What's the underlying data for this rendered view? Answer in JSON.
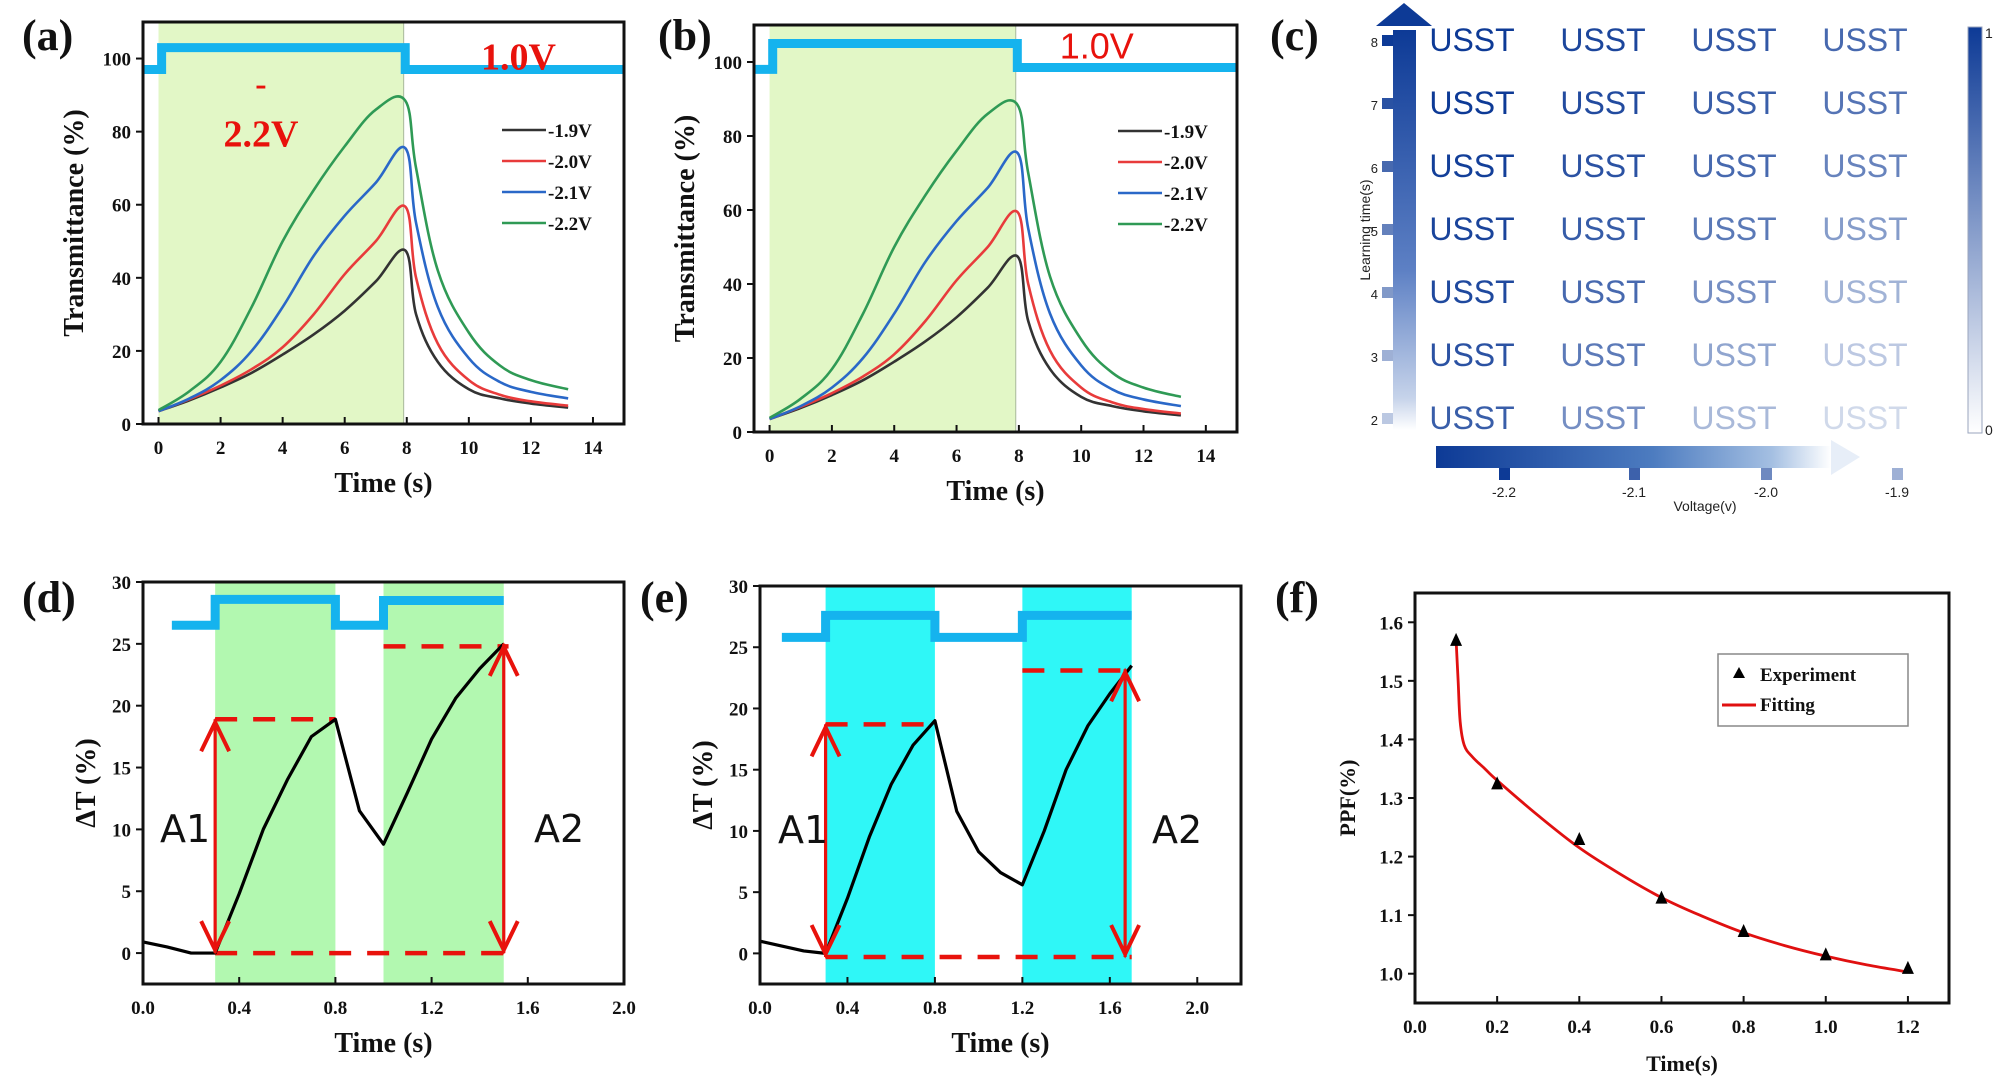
{
  "figure": {
    "panels": [
      "(a)",
      "(b)",
      "(c)",
      "(d)",
      "(e)",
      "(f)"
    ]
  },
  "chart_data": [
    {
      "id": "a",
      "panel_label": "(a)",
      "type": "line",
      "xlabel": "Time (s)",
      "ylabel": "Transmittance (%)",
      "xlim": [
        -0.5,
        15
      ],
      "ylim": [
        0,
        110
      ],
      "xticks": [
        0,
        2,
        4,
        6,
        8,
        10,
        12,
        14
      ],
      "yticks": [
        0,
        20,
        40,
        60,
        80,
        100
      ],
      "shaded_region": {
        "x": [
          0,
          7.9
        ],
        "color": "#e2f7c6"
      },
      "pulse": {
        "color": "#15b3ee",
        "segments": [
          [
            -0.5,
            97
          ],
          [
            0.1,
            97
          ],
          [
            0.1,
            103
          ],
          [
            7.95,
            103
          ],
          [
            7.95,
            97
          ],
          [
            15,
            97
          ]
        ]
      },
      "annotations": [
        {
          "text": "-",
          "x": 3.3,
          "y": 90
        },
        {
          "text": "2.2V",
          "x": 3.3,
          "y": 76
        },
        {
          "text": "1.0V",
          "x": 11.6,
          "y": 97
        }
      ],
      "legend": {
        "position": "top-right",
        "entries": [
          "-1.9V",
          "-2.0V",
          "-2.1V",
          "-2.2V"
        ]
      },
      "series": [
        {
          "name": "-1.9V",
          "color": "#333333",
          "x": [
            0,
            1,
            2,
            3,
            4,
            5,
            6,
            7,
            7.95,
            8.3,
            9,
            10,
            11,
            12,
            13.2
          ],
          "y": [
            3.5,
            6.5,
            10,
            14,
            19,
            24.5,
            31,
            39,
            47.5,
            30,
            17,
            9.5,
            7,
            5.6,
            4.5
          ]
        },
        {
          "name": "-2.0V",
          "color": "#e83b3b",
          "x": [
            0,
            1,
            2,
            3,
            4,
            5,
            6,
            7,
            7.95,
            8.3,
            9,
            10,
            11,
            12,
            13.2
          ],
          "y": [
            3.5,
            6.8,
            10.5,
            15,
            21,
            30,
            41,
            50,
            59.5,
            40,
            22,
            12,
            8,
            6.2,
            5
          ]
        },
        {
          "name": "-2.1V",
          "color": "#2a68c8",
          "x": [
            0,
            1,
            2,
            3,
            4,
            5,
            6,
            7,
            7.95,
            8.3,
            9,
            10,
            11,
            12,
            13.2
          ],
          "y": [
            3.5,
            7,
            12,
            20,
            32,
            46,
            57,
            66,
            75.5,
            55,
            32,
            18,
            11.5,
            8.8,
            7
          ]
        },
        {
          "name": "-2.2V",
          "color": "#2f9a55",
          "x": [
            0,
            1,
            2,
            3,
            4,
            5,
            6,
            7,
            7.95,
            8.3,
            9,
            10,
            11,
            12,
            13.2
          ],
          "y": [
            3.8,
            9,
            17,
            32,
            50,
            64,
            76,
            86,
            88.5,
            70,
            42,
            25,
            16,
            12,
            9.5
          ]
        }
      ]
    },
    {
      "id": "b",
      "panel_label": "(b)",
      "type": "line",
      "xlabel": "Time (s)",
      "ylabel": "Transmittance (%)",
      "xlim": [
        -0.5,
        15
      ],
      "ylim": [
        0,
        110
      ],
      "xticks": [
        0,
        2,
        4,
        6,
        8,
        10,
        12,
        14
      ],
      "yticks": [
        0,
        20,
        40,
        60,
        80,
        100
      ],
      "shaded_region": {
        "x": [
          0,
          7.9
        ],
        "color": "#e2f7c6"
      },
      "pulse": {
        "color": "#15b3ee",
        "segments": [
          [
            -0.5,
            98
          ],
          [
            0.1,
            98
          ],
          [
            0.1,
            105
          ],
          [
            7.95,
            105
          ],
          [
            7.95,
            98.5
          ],
          [
            15,
            98.5
          ]
        ]
      },
      "annotations": [
        {
          "text": "1.0V",
          "x": 10.5,
          "y": 101
        }
      ],
      "legend": {
        "position": "top-right",
        "entries": [
          "-1.9V",
          "-2.0V",
          "-2.1V",
          "-2.2V"
        ]
      },
      "series": [
        {
          "name": "-1.9V",
          "color": "#333333",
          "x": [
            0,
            1,
            2,
            3,
            4,
            5,
            6,
            7,
            7.95,
            8.3,
            9,
            10,
            11,
            12,
            13.2
          ],
          "y": [
            3.5,
            6.5,
            10,
            14,
            19,
            24.5,
            31,
            39,
            47.5,
            30,
            17,
            9.5,
            7,
            5.6,
            4.5
          ]
        },
        {
          "name": "-2.0V",
          "color": "#e83b3b",
          "x": [
            0,
            1,
            2,
            3,
            4,
            5,
            6,
            7,
            7.95,
            8.3,
            9,
            10,
            11,
            12,
            13.2
          ],
          "y": [
            3.5,
            6.8,
            10.5,
            15,
            21,
            30,
            41,
            50,
            59.5,
            40,
            22,
            12,
            8,
            6.2,
            5
          ]
        },
        {
          "name": "-2.1V",
          "color": "#2a68c8",
          "x": [
            0,
            1,
            2,
            3,
            4,
            5,
            6,
            7,
            7.95,
            8.3,
            9,
            10,
            11,
            12,
            13.2
          ],
          "y": [
            3.5,
            7,
            12,
            20,
            32,
            46,
            57,
            66,
            75.5,
            55,
            32,
            18,
            11.5,
            8.8,
            7
          ]
        },
        {
          "name": "-2.2V",
          "color": "#2f9a55",
          "x": [
            0,
            1,
            2,
            3,
            4,
            5,
            6,
            7,
            7.95,
            8.3,
            9,
            10,
            11,
            12,
            13.2
          ],
          "y": [
            3.8,
            9,
            17,
            32,
            50,
            64,
            76,
            86,
            88.5,
            70,
            42,
            25,
            16,
            12,
            9.5
          ]
        }
      ]
    },
    {
      "id": "c",
      "panel_label": "(c)",
      "type": "heatmap",
      "cell_text": "USST",
      "xlabel": "Voltage(v)",
      "ylabel": "Learning time(s)",
      "x_categories": [
        "-2.2",
        "-2.1",
        "-2.0",
        "-1.9"
      ],
      "y_categories": [
        "8",
        "7",
        "6",
        "5",
        "4",
        "3",
        "2"
      ],
      "colorbar": {
        "min": "0",
        "max": "1",
        "low_color": "#ffffff",
        "high_color": "#0d3a96"
      },
      "values": [
        [
          1.0,
          0.95,
          0.88,
          0.8
        ],
        [
          1.0,
          0.93,
          0.85,
          0.75
        ],
        [
          0.98,
          0.9,
          0.8,
          0.68
        ],
        [
          0.96,
          0.86,
          0.73,
          0.55
        ],
        [
          0.94,
          0.8,
          0.62,
          0.42
        ],
        [
          0.9,
          0.72,
          0.5,
          0.28
        ],
        [
          0.85,
          0.62,
          0.38,
          0.16
        ]
      ]
    },
    {
      "id": "d",
      "panel_label": "(d)",
      "type": "line",
      "xlabel": "Time (s)",
      "ylabel": "ΔT (%)",
      "xlim": [
        0,
        2.0
      ],
      "ylim": [
        -2.5,
        30
      ],
      "xticks": [
        "0.0",
        "0.4",
        "0.8",
        "1.2",
        "1.6",
        "2.0"
      ],
      "yticks": [
        0,
        5,
        10,
        15,
        20,
        25,
        30
      ],
      "shaded_regions": [
        {
          "x": [
            0.3,
            0.8
          ]
        },
        {
          "x": [
            1.0,
            1.5
          ]
        }
      ],
      "shade_color": "#b2f8b0",
      "pulse": {
        "color": "#15b3ee",
        "segments": [
          [
            0.12,
            26.5
          ],
          [
            0.3,
            26.5
          ],
          [
            0.3,
            28.6
          ],
          [
            0.8,
            28.6
          ],
          [
            0.8,
            26.5
          ],
          [
            1.0,
            26.5
          ],
          [
            1.0,
            28.5
          ],
          [
            1.5,
            28.5
          ]
        ]
      },
      "series": [
        {
          "name": "ΔT",
          "color": "#000000",
          "x": [
            0,
            0.1,
            0.2,
            0.3,
            0.4,
            0.5,
            0.6,
            0.7,
            0.8,
            0.9,
            1.0,
            1.1,
            1.2,
            1.3,
            1.4,
            1.5
          ],
          "y": [
            0.9,
            0.5,
            0.0,
            0.0,
            4.8,
            10.0,
            14.0,
            17.5,
            18.9,
            11.5,
            8.8,
            13.0,
            17.3,
            20.6,
            23.0,
            25.0
          ]
        }
      ],
      "arrows": [
        {
          "label": "A1",
          "x": 0.3,
          "y_from": 0,
          "y_to": 18.9
        },
        {
          "label": "A2",
          "x": 1.5,
          "y_from": 0,
          "y_to": 25.0
        }
      ],
      "dashed_levels": [
        {
          "y": 18.9,
          "x": [
            0.3,
            0.8
          ]
        },
        {
          "y": 24.8,
          "x": [
            1.0,
            1.52
          ]
        },
        {
          "y": 0,
          "x": [
            0.3,
            1.52
          ]
        }
      ]
    },
    {
      "id": "e",
      "panel_label": "(e)",
      "type": "line",
      "xlabel": "Time (s)",
      "ylabel": "ΔT (%)",
      "xlim": [
        0,
        2.2
      ],
      "ylim": [
        -2.5,
        30
      ],
      "xticks": [
        "0.0",
        "0.4",
        "0.8",
        "1.2",
        "1.6",
        "2.0"
      ],
      "yticks": [
        0,
        5,
        10,
        15,
        20,
        25,
        30
      ],
      "shaded_regions": [
        {
          "x": [
            0.3,
            0.8
          ]
        },
        {
          "x": [
            1.2,
            1.7
          ]
        }
      ],
      "shade_color": "#2ff7f7",
      "pulse": {
        "color": "#15b3ee",
        "segments": [
          [
            0.1,
            25.8
          ],
          [
            0.3,
            25.8
          ],
          [
            0.3,
            27.6
          ],
          [
            0.8,
            27.6
          ],
          [
            0.8,
            25.8
          ],
          [
            1.2,
            25.8
          ],
          [
            1.2,
            27.6
          ],
          [
            1.7,
            27.6
          ]
        ]
      },
      "series": [
        {
          "name": "ΔT",
          "color": "#000000",
          "x": [
            0,
            0.1,
            0.2,
            0.3,
            0.4,
            0.5,
            0.6,
            0.7,
            0.8,
            0.9,
            1.0,
            1.1,
            1.2,
            1.3,
            1.4,
            1.5,
            1.6,
            1.7
          ],
          "y": [
            1.0,
            0.6,
            0.2,
            0.0,
            4.5,
            9.5,
            13.8,
            17.0,
            19.0,
            11.6,
            8.3,
            6.6,
            5.6,
            10.0,
            15.0,
            18.6,
            21.2,
            23.5
          ]
        }
      ],
      "arrows": [
        {
          "label": "A1",
          "x": 0.3,
          "y_from": -0.3,
          "y_to": 18.7
        },
        {
          "label": "A2",
          "x": 1.67,
          "y_from": -0.3,
          "y_to": 23.2
        }
      ],
      "dashed_levels": [
        {
          "y": 18.7,
          "x": [
            0.3,
            0.8
          ]
        },
        {
          "y": 23.1,
          "x": [
            1.2,
            1.7
          ]
        },
        {
          "y": -0.3,
          "x": [
            0.3,
            1.7
          ]
        }
      ]
    },
    {
      "id": "f",
      "panel_label": "(f)",
      "type": "scatter",
      "xlabel": "Time(s)",
      "ylabel": "PPF(%)",
      "xlim": [
        0,
        1.3
      ],
      "ylim": [
        0.95,
        1.65
      ],
      "xticks": [
        "0.0",
        "0.2",
        "0.4",
        "0.6",
        "0.8",
        "1.0",
        "1.2"
      ],
      "yticks": [
        "1.0",
        "1.1",
        "1.2",
        "1.3",
        "1.4",
        "1.5",
        "1.6"
      ],
      "legend": {
        "position": "top-right",
        "entries": [
          "Experiment",
          "Fitting"
        ]
      },
      "series": [
        {
          "name": "Experiment",
          "marker": "triangle",
          "color": "#000000",
          "x": [
            0.1,
            0.2,
            0.4,
            0.6,
            0.8,
            1.0,
            1.2
          ],
          "y": [
            1.57,
            1.325,
            1.23,
            1.13,
            1.073,
            1.033,
            1.01
          ]
        },
        {
          "name": "Fitting",
          "color": "#e01010",
          "x": [
            0.1,
            0.105,
            0.11,
            0.12,
            0.14,
            0.17,
            0.2,
            0.3,
            0.4,
            0.5,
            0.6,
            0.7,
            0.8,
            0.9,
            1.0,
            1.1,
            1.2
          ],
          "y": [
            1.57,
            1.5,
            1.43,
            1.39,
            1.37,
            1.35,
            1.33,
            1.27,
            1.215,
            1.17,
            1.13,
            1.098,
            1.07,
            1.048,
            1.03,
            1.015,
            1.003
          ]
        }
      ]
    }
  ]
}
